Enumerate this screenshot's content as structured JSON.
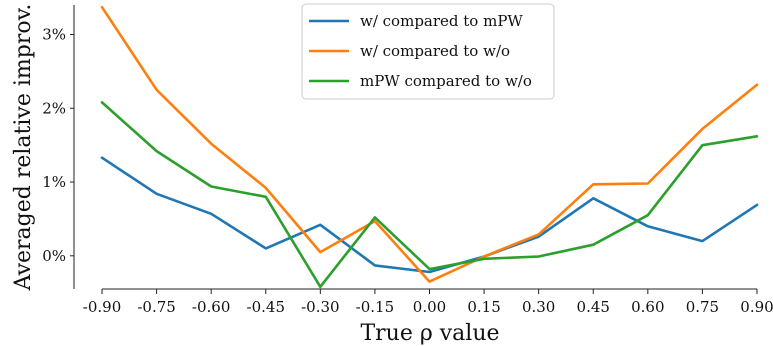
{
  "chart_data": {
    "type": "line",
    "xlabel": "True ρ value",
    "ylabel": "Averaged relative improv.",
    "categories": [
      "-0.90",
      "-0.75",
      "-0.60",
      "-0.45",
      "-0.30",
      "-0.15",
      "0.00",
      "0.15",
      "0.30",
      "0.45",
      "0.60",
      "0.75",
      "0.90"
    ],
    "y_ticks": [
      "0%",
      "1%",
      "2%",
      "3%"
    ],
    "ylim": [
      -0.45,
      3.4
    ],
    "grid": false,
    "legend_position": "top-center",
    "series": [
      {
        "name": "w/ compared to mPW",
        "color": "#1f77b4",
        "values": [
          1.33,
          0.84,
          0.57,
          0.1,
          0.42,
          -0.13,
          -0.22,
          -0.01,
          0.26,
          0.78,
          0.4,
          0.2,
          0.69
        ]
      },
      {
        "name": "w/ compared to w/o",
        "color": "#ff7f0e",
        "values": [
          3.37,
          2.25,
          1.52,
          0.92,
          0.05,
          0.47,
          -0.35,
          -0.01,
          0.29,
          0.97,
          0.98,
          1.72,
          2.32
        ]
      },
      {
        "name": "mPW compared to w/o",
        "color": "#2ca02c",
        "values": [
          2.08,
          1.42,
          0.94,
          0.8,
          -0.42,
          0.52,
          -0.18,
          -0.04,
          -0.01,
          0.15,
          0.55,
          1.5,
          1.62
        ]
      }
    ]
  }
}
